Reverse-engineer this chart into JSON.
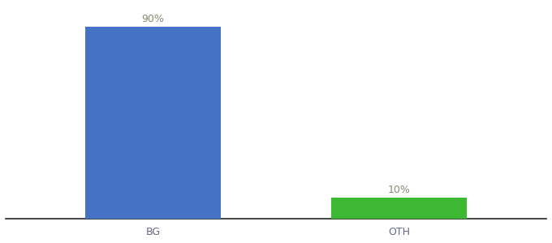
{
  "categories": [
    "BG",
    "OTH"
  ],
  "values": [
    90,
    10
  ],
  "bar_colors": [
    "#4472c4",
    "#3cb832"
  ],
  "bar_labels": [
    "90%",
    "10%"
  ],
  "ylim": [
    0,
    100
  ],
  "background_color": "#ffffff",
  "label_fontsize": 9,
  "tick_fontsize": 9,
  "label_color": "#888877",
  "tick_color": "#666688",
  "spine_color": "#222222",
  "bar_width": 0.55
}
